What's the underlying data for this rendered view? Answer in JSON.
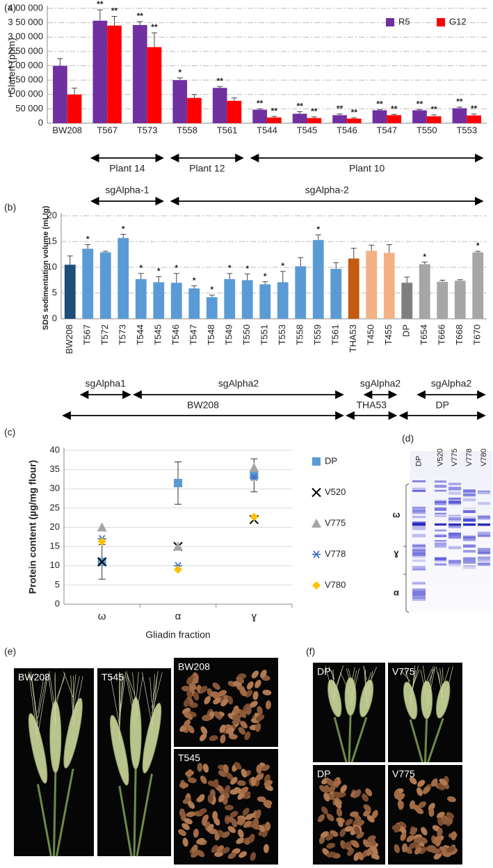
{
  "chart_data": [
    {
      "type": "bar",
      "panel_label": "(a)",
      "y_label": "Gluten (ppm)",
      "categories": [
        "BW208",
        "T567",
        "T573",
        "T558",
        "T561",
        "T544",
        "T545",
        "T546",
        "T547",
        "T550",
        "T553"
      ],
      "series": [
        {
          "name": "R5",
          "color": "#7030a0",
          "values": [
            200000,
            357000,
            342000,
            150000,
            123000,
            47000,
            33000,
            28000,
            45000,
            45000,
            52000
          ],
          "errors": [
            25000,
            38000,
            12000,
            8000,
            5000,
            3000,
            7000,
            4000,
            3000,
            3000,
            4000
          ],
          "annotations": [
            null,
            "**",
            "**",
            "*",
            "**",
            "**",
            "**",
            "**",
            "**",
            "**",
            "**"
          ]
        },
        {
          "name": "G12",
          "color": "#ff0000",
          "values": [
            100000,
            340000,
            265000,
            88000,
            78000,
            20000,
            18000,
            16000,
            28000,
            24000,
            27000
          ],
          "errors": [
            22000,
            32000,
            50000,
            12000,
            10000,
            4000,
            4000,
            3000,
            3000,
            5000,
            5000
          ],
          "annotations": [
            null,
            "**",
            "**",
            null,
            null,
            "**",
            "**",
            "**",
            "**",
            "**",
            "**"
          ]
        }
      ],
      "ylim": [
        0,
        400000
      ],
      "yticks": [
        0,
        {
          "value": 50000,
          "label": "50 000"
        },
        {
          "value": 100000,
          "label": "1 00 000"
        },
        {
          "value": 150000,
          "label": "1 50 000"
        },
        {
          "value": 200000,
          "label": "2 00 000"
        },
        {
          "value": 250000,
          "label": "2 50 000"
        },
        {
          "value": 300000,
          "label": "3 00 000"
        },
        {
          "value": 350000,
          "label": "3 50 000"
        },
        {
          "value": 400000,
          "label": "4 00 000"
        }
      ],
      "grid": true,
      "grid_style": "dashed",
      "legend": "upper right",
      "group_rows": [
        [
          {
            "label": "Plant 14",
            "from": "T567",
            "to": "T573"
          },
          {
            "label": "Plant 12",
            "from": "T558",
            "to": "T561"
          },
          {
            "label": "Plant 10",
            "from": "T544",
            "to": "T553"
          }
        ],
        [
          {
            "label": "sgAlpha-1",
            "from": "T567",
            "to": "T573"
          },
          {
            "label": "sgAlpha-2",
            "from": "T558",
            "to": "T553"
          }
        ]
      ]
    },
    {
      "type": "bar",
      "panel_label": "(b)",
      "y_label": "SDS sedimentation volume (mL/g)",
      "categories": [
        "BW208",
        "T567",
        "T572",
        "T573",
        "T544",
        "T545",
        "T546",
        "T547",
        "T548",
        "T549",
        "T550",
        "T551",
        "T553",
        "T558",
        "T559",
        "T561",
        "THA53",
        "T450",
        "T455",
        "DP",
        "T654",
        "T666",
        "T668",
        "T670"
      ],
      "series": [
        {
          "colors": [
            "#1f4e79",
            "#5b9bd5",
            "#5b9bd5",
            "#5b9bd5",
            "#5b9bd5",
            "#5b9bd5",
            "#5b9bd5",
            "#5b9bd5",
            "#5b9bd5",
            "#5b9bd5",
            "#5b9bd5",
            "#5b9bd5",
            "#5b9bd5",
            "#5b9bd5",
            "#5b9bd5",
            "#5b9bd5",
            "#c55a11",
            "#f4b183",
            "#f4b183",
            "#7f7f7f",
            "#a6a6a6",
            "#a6a6a6",
            "#a6a6a6",
            "#a6a6a6"
          ],
          "values": [
            10.5,
            13.6,
            12.9,
            15.7,
            7.7,
            7.1,
            7.0,
            5.9,
            4.2,
            7.7,
            7.5,
            6.7,
            7.1,
            10.2,
            15.3,
            9.7,
            11.7,
            13.2,
            12.8,
            7.0,
            10.6,
            7.2,
            7.4,
            12.9
          ],
          "errors": [
            1.7,
            0.8,
            0.2,
            0.7,
            1.1,
            1.1,
            1.8,
            0.5,
            0.4,
            1.1,
            1.2,
            0.5,
            2.1,
            1.7,
            1.0,
            1.2,
            2.0,
            1.1,
            1.6,
            1.1,
            0.4,
            0.3,
            0.2,
            0.2
          ],
          "annotations": [
            null,
            "*",
            null,
            "*",
            "*",
            "*",
            "*",
            "*",
            "*",
            "*",
            "*",
            "*",
            "*",
            null,
            "*",
            null,
            null,
            null,
            null,
            null,
            "*",
            null,
            null,
            "*"
          ]
        }
      ],
      "ylim": [
        0,
        20
      ],
      "yticks": [
        0,
        5,
        10,
        15,
        20
      ],
      "grid": true,
      "grid_style": "dashed",
      "group_rows": [
        [
          {
            "label": "sgAlpha1",
            "from": "T567",
            "to": "T573"
          },
          {
            "label": "sgAlpha2",
            "from": "T544",
            "to": "T561"
          },
          {
            "label": "sgAlpha2",
            "from": "T450",
            "to": "T455"
          },
          {
            "label": "sgAlpha2",
            "from": "T654",
            "to": "T670"
          }
        ],
        [
          {
            "label": "BW208",
            "from": "BW208",
            "to": "T561"
          },
          {
            "label": "THA53",
            "from": "THA53",
            "to": "T455"
          },
          {
            "label": "DP",
            "from": "DP",
            "to": "T670"
          }
        ]
      ]
    },
    {
      "type": "scatter",
      "panel_label": "(c)",
      "y_label": "Protein content (µg/mg flour)",
      "x_label": "Gliadin fraction",
      "categories": [
        "ω",
        "α",
        "ɣ"
      ],
      "series": [
        {
          "name": "DP",
          "color": "#5b9bd5",
          "marker": "square",
          "values": [
            11,
            31.5,
            33.5
          ],
          "errors": [
            4.5,
            5.5,
            4.3
          ]
        },
        {
          "name": "V520",
          "color": "#000000",
          "marker": "x",
          "values": [
            11,
            15,
            22
          ]
        },
        {
          "name": "V775",
          "color": "#a5a5a5",
          "marker": "triangle",
          "values": [
            20,
            15,
            35.5
          ]
        },
        {
          "name": "V778",
          "color": "#4472c4",
          "marker": "star",
          "values": [
            17,
            10,
            33
          ]
        },
        {
          "name": "V780",
          "color": "#ffc000",
          "marker": "diamond",
          "values": [
            16.3,
            9,
            22.7
          ]
        }
      ],
      "ylim": [
        0,
        40
      ],
      "yticks": [
        0,
        5,
        10,
        15,
        20,
        25,
        30,
        35,
        40
      ],
      "grid": true,
      "grid_style": "solid",
      "legend": "right"
    }
  ],
  "gel": {
    "panel_label": "(d)",
    "lanes": [
      "DP",
      "V520",
      "V775",
      "V778",
      "V780"
    ],
    "fractions": [
      "ω",
      "ɣ",
      "α"
    ]
  },
  "photos_e": {
    "panel_label": "(e)",
    "labels": [
      "BW208",
      "T545",
      "BW208",
      "T545"
    ]
  },
  "photos_f": {
    "panel_label": "(f)",
    "labels": [
      "DP",
      "V775",
      "DP",
      "V775"
    ]
  }
}
